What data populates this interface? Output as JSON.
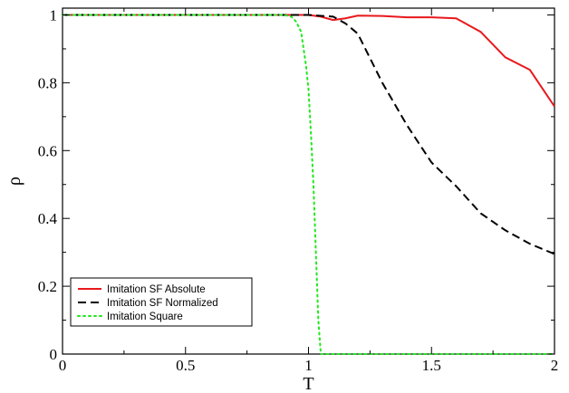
{
  "chart_data": {
    "type": "line",
    "title": "",
    "xlabel": "T",
    "ylabel": "ρ",
    "xlim": [
      0,
      2
    ],
    "ylim": [
      0,
      1.02
    ],
    "xticks": [
      0,
      0.5,
      1,
      1.5,
      2
    ],
    "xtick_labels": [
      "0",
      "0.5",
      "1",
      "1.5",
      "2"
    ],
    "yticks": [
      0,
      0.2,
      0.4,
      0.6,
      0.8,
      1
    ],
    "ytick_labels": [
      "0",
      "0.2",
      "0.4",
      "0.6",
      "0.8",
      "1"
    ],
    "grid": false,
    "legend_position": "bottom-left",
    "series": [
      {
        "name": "Imitation SF Absolute",
        "color": "#e8191d",
        "style": "solid",
        "x": [
          0,
          0.5,
          0.9,
          1.0,
          1.05,
          1.1,
          1.15,
          1.2,
          1.3,
          1.4,
          1.5,
          1.6,
          1.7,
          1.8,
          1.9,
          2.0
        ],
        "y": [
          1,
          1,
          1,
          1,
          0.995,
          0.985,
          0.99,
          0.998,
          0.997,
          0.993,
          0.993,
          0.99,
          0.95,
          0.875,
          0.838,
          0.73
        ]
      },
      {
        "name": "Imitation SF Normalized",
        "color": "#000000",
        "style": "dashed",
        "x": [
          0,
          0.5,
          1.0,
          1.1,
          1.15,
          1.2,
          1.3,
          1.4,
          1.5,
          1.6,
          1.7,
          1.8,
          1.9,
          2.0
        ],
        "y": [
          1,
          1,
          1,
          0.995,
          0.975,
          0.945,
          0.8,
          0.675,
          0.565,
          0.495,
          0.415,
          0.365,
          0.325,
          0.295
        ]
      },
      {
        "name": "Imitation Square",
        "color": "#22e81e",
        "style": "dotted",
        "x": [
          0,
          0.5,
          0.9,
          0.93,
          0.95,
          0.97,
          0.99,
          1.0,
          1.01,
          1.02,
          1.03,
          1.04,
          1.05,
          1.1,
          1.5,
          2.0
        ],
        "y": [
          1,
          1,
          1,
          0.995,
          0.98,
          0.95,
          0.85,
          0.78,
          0.65,
          0.5,
          0.3,
          0.1,
          0,
          0,
          0,
          0
        ]
      }
    ]
  }
}
